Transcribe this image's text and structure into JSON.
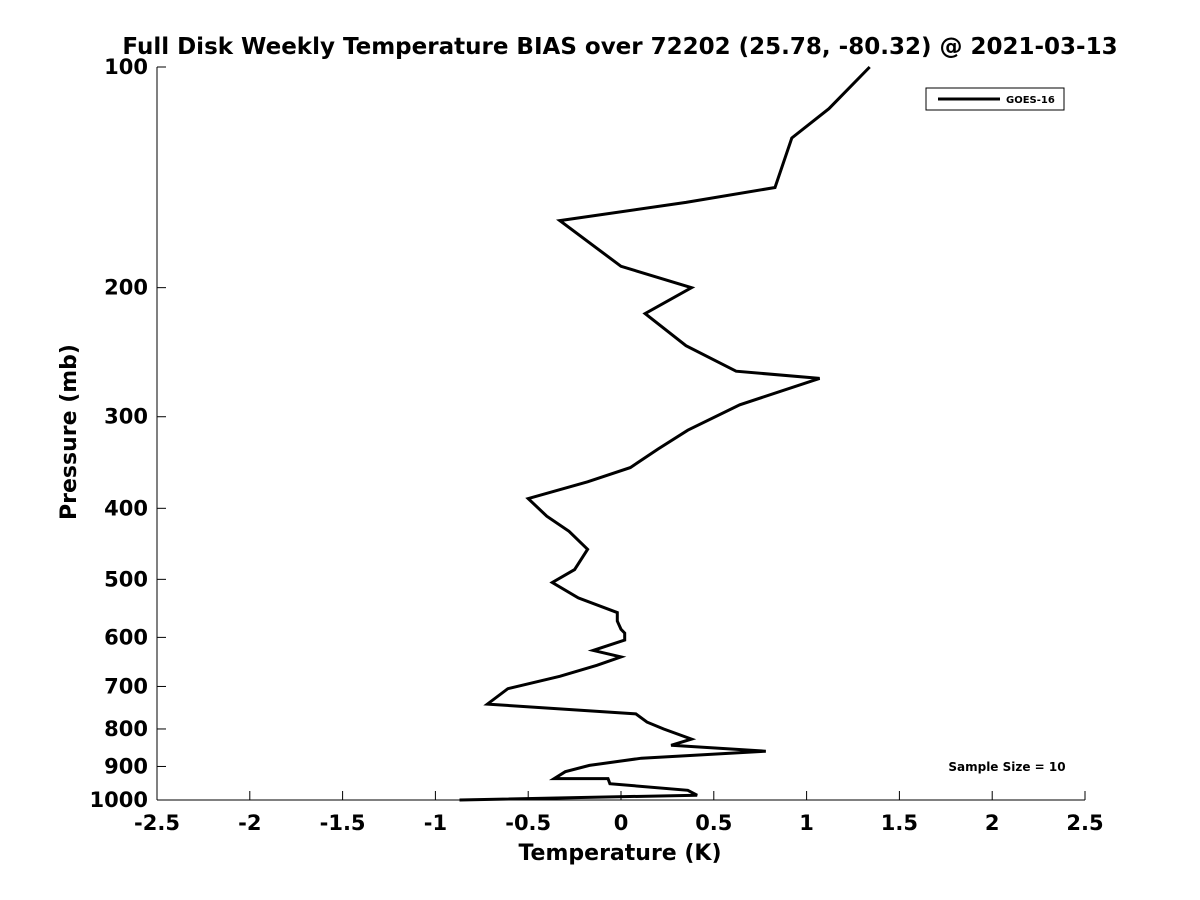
{
  "chart_data": {
    "type": "line",
    "title": "Full Disk Weekly Temperature BIAS over 72202 (25.78, -80.32) @ 2021-03-13",
    "xlabel": "Temperature (K)",
    "ylabel": "Pressure (mb)",
    "xlim": [
      -2.5,
      2.5
    ],
    "ylim": [
      100,
      1000
    ],
    "y_scale": "log",
    "y_reversed": true,
    "grid": false,
    "legend_position": "top-right",
    "x_ticks": [
      -2.5,
      -2,
      -1.5,
      -1,
      -0.5,
      0,
      0.5,
      1,
      1.5,
      2,
      2.5
    ],
    "x_tick_labels": [
      "-2.5",
      "-2",
      "-1.5",
      "-1",
      "-0.5",
      "0",
      "0.5",
      "1",
      "1.5",
      "2",
      "2.5"
    ],
    "y_ticks": [
      100,
      200,
      300,
      400,
      500,
      600,
      700,
      800,
      900,
      1000
    ],
    "y_tick_labels": [
      "100",
      "200",
      "300",
      "400",
      "500",
      "600",
      "700",
      "800",
      "900",
      "1000"
    ],
    "series": [
      {
        "name": "GOES-16",
        "color": "#000000",
        "x": [
          1.34,
          1.12,
          0.92,
          0.83,
          0.35,
          -0.33,
          0.0,
          0.38,
          0.13,
          0.35,
          0.62,
          1.07,
          0.64,
          0.36,
          0.2,
          0.05,
          -0.18,
          -0.5,
          -0.4,
          -0.28,
          -0.18,
          -0.25,
          -0.37,
          -0.23,
          -0.02,
          -0.02,
          0.0,
          0.02,
          0.02,
          -0.15,
          0.0,
          -0.13,
          -0.33,
          -0.61,
          -0.72,
          0.08,
          0.14,
          0.23,
          0.38,
          0.27,
          0.78,
          0.11,
          -0.17,
          -0.3,
          -0.36,
          -0.07,
          -0.06,
          0.36,
          0.41,
          -0.87
        ],
        "y": [
          100,
          114,
          125,
          146,
          153,
          162,
          187,
          200,
          217,
          240,
          260,
          266,
          289,
          313,
          332,
          352,
          368,
          388,
          410,
          430,
          455,
          485,
          505,
          530,
          555,
          570,
          585,
          592,
          605,
          625,
          638,
          655,
          678,
          705,
          740,
          763,
          783,
          800,
          826,
          842,
          858,
          877,
          897,
          915,
          935,
          935,
          950,
          970,
          985,
          1000
        ]
      }
    ],
    "annotation": "Sample Size = 10"
  }
}
